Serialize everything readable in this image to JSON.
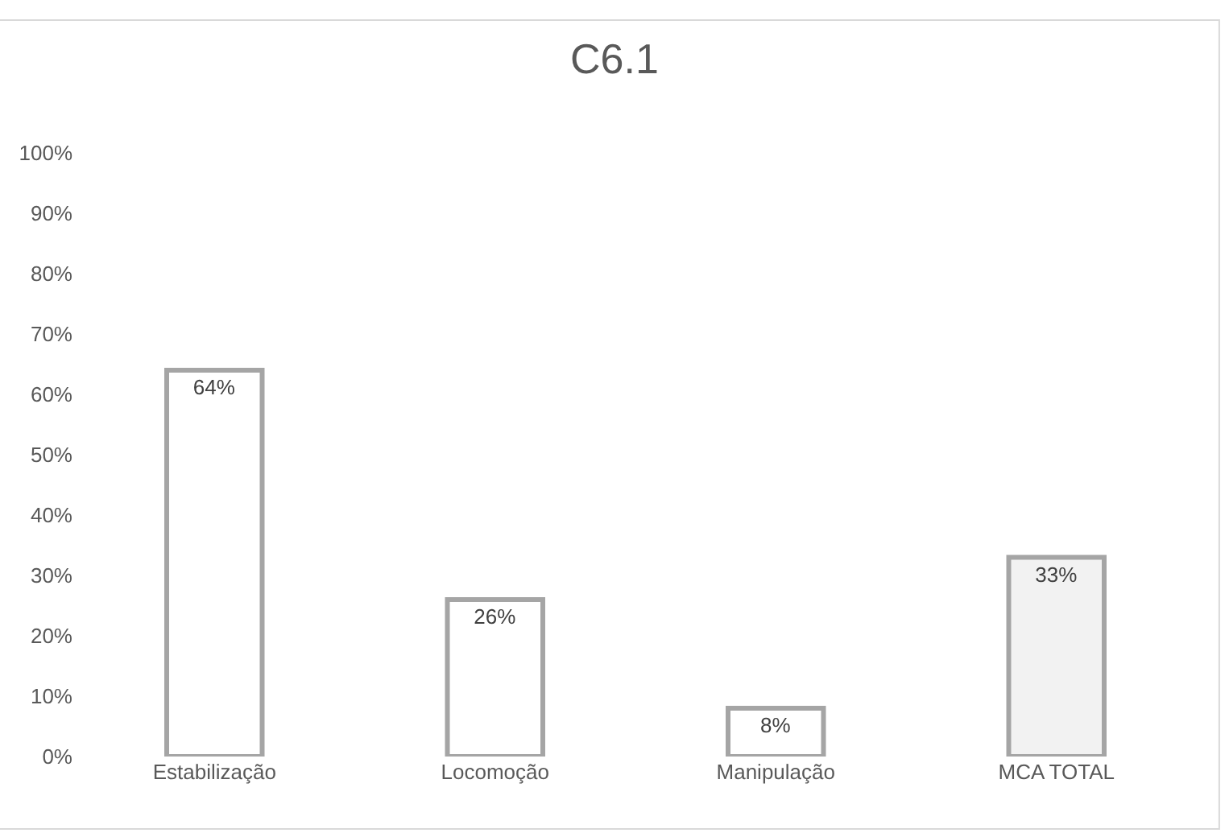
{
  "chart_data": {
    "type": "bar",
    "title": "C6.1",
    "categories": [
      "Estabilização",
      "Locomoção",
      "Manipulação",
      "MCA TOTAL"
    ],
    "values": [
      64,
      26,
      8,
      33
    ],
    "value_labels": [
      "64%",
      "26%",
      "8%",
      "33%"
    ],
    "colors": [
      "#ffffff",
      "#ffffff",
      "#ffffff",
      "#f2f2f2"
    ],
    "ylim": [
      0,
      100
    ],
    "yticks": [
      {
        "value": 0,
        "label": "0%"
      },
      {
        "value": 10,
        "label": "10%"
      },
      {
        "value": 20,
        "label": "20%"
      },
      {
        "value": 30,
        "label": "30%"
      },
      {
        "value": 40,
        "label": "40%"
      },
      {
        "value": 50,
        "label": "50%"
      },
      {
        "value": 60,
        "label": "60%"
      },
      {
        "value": 70,
        "label": "70%"
      },
      {
        "value": 80,
        "label": "80%"
      },
      {
        "value": 90,
        "label": "90%"
      },
      {
        "value": 100,
        "label": "100%"
      }
    ]
  }
}
